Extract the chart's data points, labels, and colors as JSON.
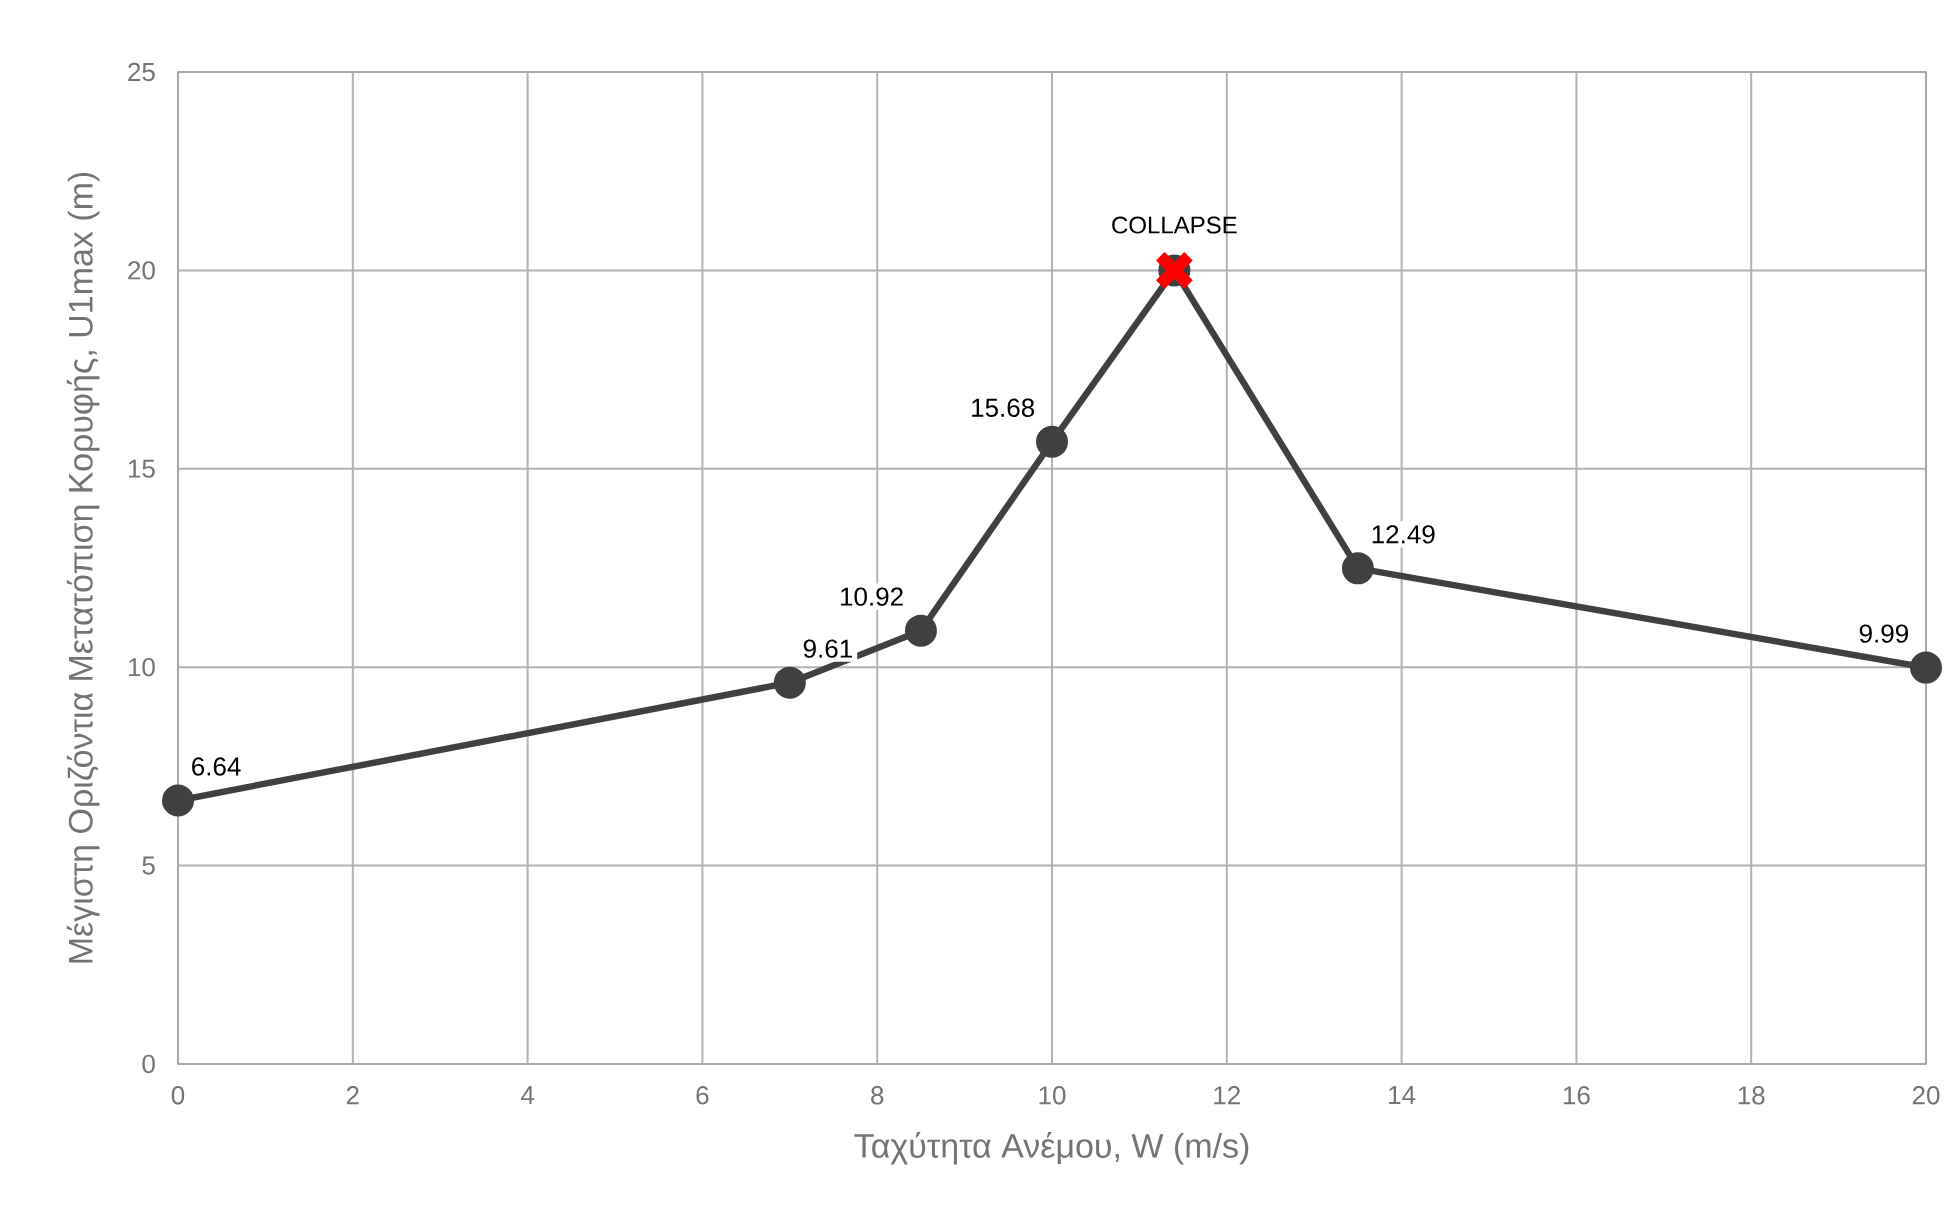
{
  "chart_data": {
    "type": "line",
    "xlabel": "Ταχύτητα Ανέμου, W (m/s)",
    "ylabel": "Μέγιστη Οριζόντια Μετατόπιση Κορυφής, U1max (m)",
    "xlim": [
      0,
      20
    ],
    "xticks": [
      0,
      2,
      4,
      6,
      8,
      10,
      12,
      14,
      16,
      18,
      20
    ],
    "ylim": [
      0,
      25
    ],
    "yticks": [
      0,
      5,
      10,
      15,
      20,
      25
    ],
    "grid": true,
    "series": [
      {
        "x": [
          0,
          7,
          8.5,
          10,
          11.4,
          13.5,
          20
        ],
        "values": [
          6.64,
          9.61,
          10.92,
          15.68,
          20,
          12.49,
          9.99
        ],
        "color": "#404040",
        "marker": "circle",
        "value_labels": [
          "6.64",
          "9.61",
          "10.92",
          "15.68",
          null,
          "12.49",
          "9.99"
        ]
      },
      {
        "type": "scatter",
        "x": [
          11.4
        ],
        "values": [
          20
        ],
        "color": "#ff0000",
        "marker": "cross"
      }
    ],
    "annotations": [
      {
        "text": "COLLAPSE",
        "x": 11.4,
        "y": 20
      }
    ]
  }
}
